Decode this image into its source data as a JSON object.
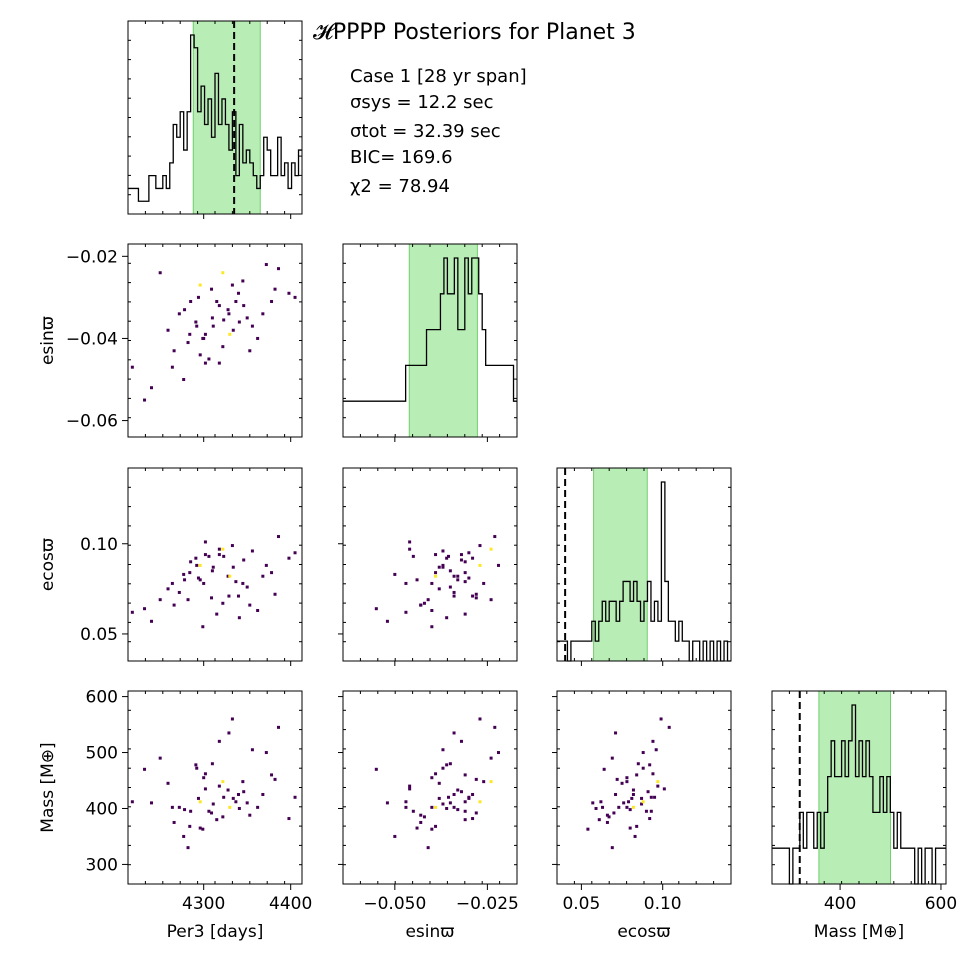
{
  "title": "𝓗PPPP Posteriors for Planet 3",
  "annotations": {
    "case": "Case 1 [28 yr span]",
    "sigma_sys": "σsys = 12.2 sec",
    "sigma_tot": "σtot = 32.39 sec",
    "bic": "BIC= 169.6",
    "chi2": "χ2 = 78.94"
  },
  "colors": {
    "band": "#b9edb6",
    "band_edge": "#6fcf6a",
    "hist": "#000000",
    "cell": "#440154",
    "cell_high": "#fde725",
    "truth": "#000000"
  },
  "chart_data": {
    "type": "corner",
    "parameters": [
      {
        "key": "per",
        "label": "Per3 [days]",
        "range": [
          4213,
          4413
        ],
        "ticks": [
          4300,
          4400
        ],
        "tick_labels": [
          "4300",
          "4400"
        ]
      },
      {
        "key": "esin",
        "label": "esinϖ",
        "range": [
          -0.064,
          -0.017
        ],
        "ticks": [
          -0.06,
          -0.04,
          -0.02
        ],
        "tick_labels": [
          "−0.06",
          "−0.04",
          "−0.02"
        ],
        "xticks": [
          -0.05,
          -0.025
        ],
        "xtick_labels": [
          "−0.050",
          "−0.025"
        ]
      },
      {
        "key": "ecos",
        "label": "ecosϖ",
        "range": [
          0.035,
          0.142
        ],
        "ticks": [
          0.05,
          0.1
        ],
        "tick_labels": [
          "0.05",
          "0.10"
        ]
      },
      {
        "key": "mass",
        "label": "Mass [M⊕]",
        "range": [
          265,
          610
        ],
        "ticks": [
          300,
          400,
          500,
          600
        ],
        "tick_labels": [
          "300",
          "400",
          "500",
          "600"
        ],
        "xticks": [
          400,
          600
        ],
        "xtick_labels": [
          "400",
          "600"
        ]
      }
    ],
    "histograms": [
      {
        "param": "per",
        "band": [
          4288,
          4365
        ],
        "truth": 4335,
        "counts": [
          2,
          2,
          2,
          1,
          1,
          1,
          3,
          3,
          2,
          2,
          3,
          2,
          4,
          7,
          6,
          8,
          5,
          8,
          14,
          13,
          8,
          10,
          7,
          9,
          6,
          11,
          7,
          9,
          7,
          5,
          8,
          3,
          7,
          4,
          5,
          4,
          3,
          2,
          3,
          6,
          5,
          3,
          3,
          6,
          3,
          4,
          2,
          4,
          3,
          5
        ]
      },
      {
        "param": "esin",
        "band": [
          -0.0461,
          -0.0277
        ],
        "truth": null,
        "counts": [
          1,
          1,
          1,
          1,
          1,
          1,
          1,
          1,
          1,
          1,
          1,
          1,
          1,
          1,
          1,
          1,
          1,
          1,
          2,
          2,
          2,
          2,
          2,
          2,
          3,
          3,
          3,
          3,
          4,
          5,
          4,
          4,
          5,
          3,
          3,
          5,
          4,
          5,
          5,
          4,
          3,
          2,
          2,
          2,
          2,
          2,
          2,
          2,
          2,
          1
        ]
      },
      {
        "param": "ecos",
        "band": [
          0.0575,
          0.0905
        ],
        "truth": 0.04,
        "counts": [
          1,
          1,
          1,
          0,
          1,
          1,
          1,
          1,
          1,
          1,
          2,
          1,
          2,
          3,
          2,
          3,
          3,
          2,
          3,
          4,
          4,
          3,
          4,
          3,
          2,
          3,
          4,
          2,
          3,
          2,
          9,
          4,
          2,
          2,
          1,
          2,
          1,
          1,
          0,
          1,
          1,
          0,
          1,
          0,
          1,
          0,
          1,
          0,
          1,
          0
        ]
      },
      {
        "param": "mass",
        "band": [
          358,
          500
        ],
        "truth": 320,
        "counts": [
          1,
          1,
          1,
          1,
          1,
          0,
          1,
          1,
          2,
          1,
          2,
          2,
          1,
          2,
          1,
          2,
          3,
          4,
          3,
          3,
          4,
          3,
          4,
          5,
          3,
          4,
          3,
          4,
          3,
          2,
          2,
          3,
          2,
          3,
          2,
          1,
          2,
          1,
          1,
          1,
          1,
          0,
          1,
          0,
          1,
          1,
          0,
          1,
          1,
          1
        ]
      }
    ],
    "scatter_2d": {
      "points": [
        [
          4323,
          -0.0355,
          0.093,
          420
        ],
        [
          4300,
          -0.04,
          0.078,
          455
        ],
        [
          4310,
          -0.035,
          0.085,
          480
        ],
        [
          4285,
          -0.031,
          0.09,
          395
        ],
        [
          4340,
          -0.029,
          0.071,
          425
        ],
        [
          4356,
          -0.037,
          0.096,
          505
        ],
        [
          4266,
          -0.043,
          0.066,
          375
        ],
        [
          4296,
          -0.044,
          0.08,
          365
        ],
        [
          4334,
          -0.038,
          0.087,
          418
        ],
        [
          4272,
          -0.034,
          0.073,
          402
        ],
        [
          4378,
          -0.031,
          0.084,
          460
        ],
        [
          4398,
          -0.029,
          0.092,
          382
        ],
        [
          4250,
          -0.024,
          0.069,
          490
        ],
        [
          4218,
          -0.047,
          0.062,
          412
        ],
        [
          4302,
          -0.046,
          0.101,
          435
        ],
        [
          4318,
          -0.032,
          0.094,
          520
        ],
        [
          4345,
          -0.026,
          0.078,
          448
        ],
        [
          4362,
          -0.04,
          0.063,
          402
        ],
        [
          4277,
          -0.05,
          0.083,
          350
        ],
        [
          4309,
          -0.028,
          0.07,
          392
        ],
        [
          4328,
          -0.033,
          0.082,
          433
        ],
        [
          4386,
          -0.023,
          0.104,
          545
        ],
        [
          4240,
          -0.052,
          0.057,
          410
        ],
        [
          4292,
          -0.037,
          0.088,
          472
        ],
        [
          4315,
          -0.031,
          0.061,
          380
        ],
        [
          4350,
          -0.035,
          0.076,
          410
        ],
        [
          4282,
          -0.041,
          0.069,
          330
        ],
        [
          4306,
          -0.045,
          0.093,
          395
        ],
        [
          4333,
          -0.027,
          0.099,
          560
        ],
        [
          4368,
          -0.034,
          0.082,
          425
        ],
        [
          4259,
          -0.038,
          0.075,
          445
        ],
        [
          4294,
          -0.03,
          0.081,
          418
        ],
        [
          4322,
          -0.042,
          0.067,
          385
        ],
        [
          4341,
          -0.036,
          0.059,
          400
        ],
        [
          4302,
          -0.039,
          0.094,
          462
        ],
        [
          4382,
          -0.028,
          0.072,
          452
        ],
        [
          4232,
          -0.055,
          0.064,
          470
        ],
        [
          4278,
          -0.033,
          0.08,
          398
        ],
        [
          4311,
          -0.037,
          0.087,
          408
        ],
        [
          4346,
          -0.032,
          0.091,
          430
        ],
        [
          4299,
          -0.04,
          0.054,
          363
        ],
        [
          4329,
          -0.034,
          0.071,
          535
        ],
        [
          4264,
          -0.047,
          0.078,
          402
        ],
        [
          4372,
          -0.022,
          0.088,
          500
        ],
        [
          4318,
          -0.046,
          0.097,
          440
        ],
        [
          4284,
          -0.039,
          0.084,
          368
        ],
        [
          4337,
          -0.031,
          0.079,
          412
        ],
        [
          4353,
          -0.043,
          0.066,
          388
        ],
        [
          4291,
          -0.036,
          0.092,
          478
        ],
        [
          4405,
          -0.03,
          0.095,
          420
        ]
      ],
      "highlight": [
        [
          4296,
          -0.027,
          0.088,
          412
        ],
        [
          4330,
          -0.039,
          0.082,
          402
        ],
        [
          4322,
          -0.024,
          0.097,
          448
        ]
      ]
    }
  }
}
